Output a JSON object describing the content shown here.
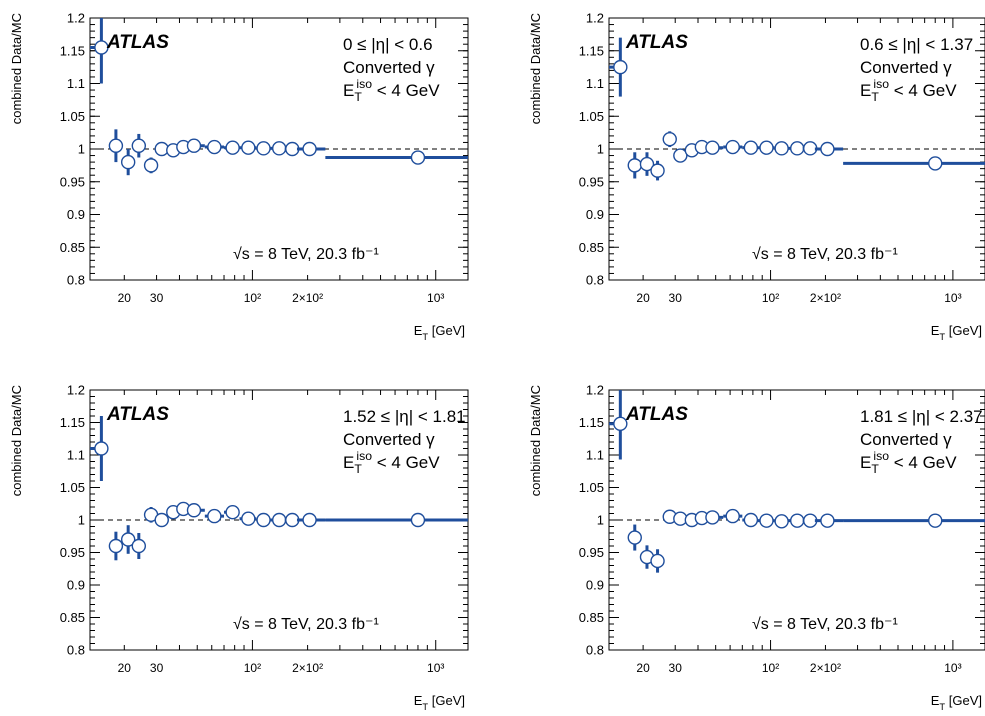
{
  "chart_data": [
    {
      "type": "scatter",
      "xscale": "log",
      "xlim": [
        13,
        1500
      ],
      "ylim": [
        0.8,
        1.2
      ],
      "xlabel": "E_T [GeV]",
      "ylabel": "combined Data/MC",
      "yticks": [
        "0.8",
        "0.85",
        "0.9",
        "0.95",
        "1",
        "1.05",
        "1.1",
        "1.15",
        "1.2"
      ],
      "xticks": [
        {
          "value": 20,
          "label": "20"
        },
        {
          "value": 30,
          "label": "30"
        },
        {
          "value": 100,
          "label": "10²"
        },
        {
          "value": 200,
          "label": "2×10²"
        },
        {
          "value": 1000,
          "label": "10³"
        }
      ],
      "reference_line": 1,
      "brand": "ATLAS",
      "annotations": [
        "0 ≤ |η| < 0.6",
        "Converted γ",
        "E_T^iso < 4 GeV"
      ],
      "lumi": "√s = 8 TeV, 20.3 fb⁻¹",
      "points": [
        {
          "x": 15,
          "xlo": 13,
          "xhi": 16,
          "y": 1.155,
          "yerr": 0.055
        },
        {
          "x": 18,
          "xlo": 17,
          "xhi": 19,
          "y": 1.005,
          "yerr": 0.025
        },
        {
          "x": 21,
          "xlo": 20,
          "xhi": 22,
          "y": 0.98,
          "yerr": 0.02
        },
        {
          "x": 24,
          "xlo": 23,
          "xhi": 25,
          "y": 1.005,
          "yerr": 0.018
        },
        {
          "x": 28,
          "xlo": 26,
          "xhi": 30,
          "y": 0.975,
          "yerr": 0.012
        },
        {
          "x": 32,
          "xlo": 30,
          "xhi": 35,
          "y": 1.0,
          "yerr": 0.008
        },
        {
          "x": 37,
          "xlo": 35,
          "xhi": 40,
          "y": 0.998,
          "yerr": 0.006
        },
        {
          "x": 42,
          "xlo": 40,
          "xhi": 45,
          "y": 1.003,
          "yerr": 0.005
        },
        {
          "x": 48,
          "xlo": 45,
          "xhi": 55,
          "y": 1.005,
          "yerr": 0.005
        },
        {
          "x": 62,
          "xlo": 55,
          "xhi": 70,
          "y": 1.003,
          "yerr": 0.004
        },
        {
          "x": 78,
          "xlo": 70,
          "xhi": 85,
          "y": 1.002,
          "yerr": 0.004
        },
        {
          "x": 95,
          "xlo": 85,
          "xhi": 105,
          "y": 1.002,
          "yerr": 0.004
        },
        {
          "x": 115,
          "xlo": 105,
          "xhi": 125,
          "y": 1.001,
          "yerr": 0.004
        },
        {
          "x": 140,
          "xlo": 125,
          "xhi": 150,
          "y": 1.001,
          "yerr": 0.004
        },
        {
          "x": 165,
          "xlo": 150,
          "xhi": 175,
          "y": 1.0,
          "yerr": 0.004
        },
        {
          "x": 205,
          "xlo": 175,
          "xhi": 250,
          "y": 1.0,
          "yerr": 0.004
        },
        {
          "x": 800,
          "xlo": 250,
          "xhi": 1500,
          "y": 0.987,
          "yerr": 0.005
        }
      ]
    },
    {
      "type": "scatter",
      "xscale": "log",
      "xlim": [
        13,
        1500
      ],
      "ylim": [
        0.8,
        1.2
      ],
      "xlabel": "E_T [GeV]",
      "ylabel": "combined Data/MC",
      "yticks": [
        "0.8",
        "0.85",
        "0.9",
        "0.95",
        "1",
        "1.05",
        "1.1",
        "1.15",
        "1.2"
      ],
      "xticks": [
        {
          "value": 20,
          "label": "20"
        },
        {
          "value": 30,
          "label": "30"
        },
        {
          "value": 100,
          "label": "10²"
        },
        {
          "value": 200,
          "label": "2×10²"
        },
        {
          "value": 1000,
          "label": "10³"
        }
      ],
      "reference_line": 1,
      "brand": "ATLAS",
      "annotations": [
        "0.6 ≤ |η| < 1.37",
        "Converted γ",
        "E_T^iso < 4 GeV"
      ],
      "lumi": "√s = 8 TeV, 20.3 fb⁻¹",
      "points": [
        {
          "x": 15,
          "xlo": 13,
          "xhi": 16,
          "y": 1.125,
          "yerr": 0.045
        },
        {
          "x": 18,
          "xlo": 17,
          "xhi": 19,
          "y": 0.975,
          "yerr": 0.02
        },
        {
          "x": 21,
          "xlo": 20,
          "xhi": 22,
          "y": 0.977,
          "yerr": 0.018
        },
        {
          "x": 24,
          "xlo": 23,
          "xhi": 25,
          "y": 0.967,
          "yerr": 0.015
        },
        {
          "x": 28,
          "xlo": 26,
          "xhi": 30,
          "y": 1.015,
          "yerr": 0.012
        },
        {
          "x": 32,
          "xlo": 30,
          "xhi": 35,
          "y": 0.99,
          "yerr": 0.008
        },
        {
          "x": 37,
          "xlo": 35,
          "xhi": 40,
          "y": 0.998,
          "yerr": 0.006
        },
        {
          "x": 42,
          "xlo": 40,
          "xhi": 45,
          "y": 1.003,
          "yerr": 0.005
        },
        {
          "x": 48,
          "xlo": 45,
          "xhi": 55,
          "y": 1.002,
          "yerr": 0.005
        },
        {
          "x": 62,
          "xlo": 55,
          "xhi": 70,
          "y": 1.003,
          "yerr": 0.004
        },
        {
          "x": 78,
          "xlo": 70,
          "xhi": 85,
          "y": 1.002,
          "yerr": 0.004
        },
        {
          "x": 95,
          "xlo": 85,
          "xhi": 105,
          "y": 1.002,
          "yerr": 0.004
        },
        {
          "x": 115,
          "xlo": 105,
          "xhi": 125,
          "y": 1.001,
          "yerr": 0.004
        },
        {
          "x": 140,
          "xlo": 125,
          "xhi": 150,
          "y": 1.001,
          "yerr": 0.004
        },
        {
          "x": 165,
          "xlo": 150,
          "xhi": 175,
          "y": 1.001,
          "yerr": 0.004
        },
        {
          "x": 205,
          "xlo": 175,
          "xhi": 250,
          "y": 1.0,
          "yerr": 0.004
        },
        {
          "x": 800,
          "xlo": 250,
          "xhi": 1500,
          "y": 0.978,
          "yerr": 0.005
        }
      ]
    },
    {
      "type": "scatter",
      "xscale": "log",
      "xlim": [
        13,
        1500
      ],
      "ylim": [
        0.8,
        1.2
      ],
      "xlabel": "E_T [GeV]",
      "ylabel": "combined Data/MC",
      "yticks": [
        "0.8",
        "0.85",
        "0.9",
        "0.95",
        "1",
        "1.05",
        "1.1",
        "1.15",
        "1.2"
      ],
      "xticks": [
        {
          "value": 20,
          "label": "20"
        },
        {
          "value": 30,
          "label": "30"
        },
        {
          "value": 100,
          "label": "10²"
        },
        {
          "value": 200,
          "label": "2×10²"
        },
        {
          "value": 1000,
          "label": "10³"
        }
      ],
      "reference_line": 1,
      "brand": "ATLAS",
      "annotations": [
        "1.52 ≤ |η| < 1.81",
        "Converted γ",
        "E_T^iso < 4 GeV"
      ],
      "lumi": "√s = 8 TeV, 20.3 fb⁻¹",
      "points": [
        {
          "x": 15,
          "xlo": 13,
          "xhi": 16,
          "y": 1.11,
          "yerr": 0.05
        },
        {
          "x": 18,
          "xlo": 17,
          "xhi": 19,
          "y": 0.96,
          "yerr": 0.022
        },
        {
          "x": 21,
          "xlo": 20,
          "xhi": 22,
          "y": 0.97,
          "yerr": 0.022
        },
        {
          "x": 24,
          "xlo": 23,
          "xhi": 25,
          "y": 0.96,
          "yerr": 0.02
        },
        {
          "x": 28,
          "xlo": 26,
          "xhi": 30,
          "y": 1.008,
          "yerr": 0.012
        },
        {
          "x": 32,
          "xlo": 30,
          "xhi": 35,
          "y": 1.0,
          "yerr": 0.008
        },
        {
          "x": 37,
          "xlo": 35,
          "xhi": 40,
          "y": 1.012,
          "yerr": 0.007
        },
        {
          "x": 42,
          "xlo": 40,
          "xhi": 45,
          "y": 1.017,
          "yerr": 0.006
        },
        {
          "x": 48,
          "xlo": 45,
          "xhi": 55,
          "y": 1.015,
          "yerr": 0.006
        },
        {
          "x": 62,
          "xlo": 55,
          "xhi": 70,
          "y": 1.006,
          "yerr": 0.005
        },
        {
          "x": 78,
          "xlo": 70,
          "xhi": 85,
          "y": 1.012,
          "yerr": 0.005
        },
        {
          "x": 95,
          "xlo": 85,
          "xhi": 105,
          "y": 1.002,
          "yerr": 0.004
        },
        {
          "x": 115,
          "xlo": 105,
          "xhi": 125,
          "y": 1.0,
          "yerr": 0.004
        },
        {
          "x": 140,
          "xlo": 125,
          "xhi": 150,
          "y": 1.0,
          "yerr": 0.004
        },
        {
          "x": 165,
          "xlo": 150,
          "xhi": 175,
          "y": 1.0,
          "yerr": 0.004
        },
        {
          "x": 205,
          "xlo": 175,
          "xhi": 250,
          "y": 1.0,
          "yerr": 0.004
        },
        {
          "x": 800,
          "xlo": 250,
          "xhi": 1500,
          "y": 1.0,
          "yerr": 0.004
        }
      ]
    },
    {
      "type": "scatter",
      "xscale": "log",
      "xlim": [
        13,
        1500
      ],
      "ylim": [
        0.8,
        1.2
      ],
      "xlabel": "E_T [GeV]",
      "ylabel": "combined Data/MC",
      "yticks": [
        "0.8",
        "0.85",
        "0.9",
        "0.95",
        "1",
        "1.05",
        "1.1",
        "1.15",
        "1.2"
      ],
      "xticks": [
        {
          "value": 20,
          "label": "20"
        },
        {
          "value": 30,
          "label": "30"
        },
        {
          "value": 100,
          "label": "10²"
        },
        {
          "value": 200,
          "label": "2×10²"
        },
        {
          "value": 1000,
          "label": "10³"
        }
      ],
      "reference_line": 1,
      "brand": "ATLAS",
      "annotations": [
        "1.81 ≤ |η| < 2.37",
        "Converted γ",
        "E_T^iso < 4 GeV"
      ],
      "lumi": "√s = 8 TeV, 20.3 fb⁻¹",
      "points": [
        {
          "x": 15,
          "xlo": 13,
          "xhi": 16,
          "y": 1.148,
          "yerr": 0.055
        },
        {
          "x": 18,
          "xlo": 17,
          "xhi": 19,
          "y": 0.973,
          "yerr": 0.02
        },
        {
          "x": 21,
          "xlo": 20,
          "xhi": 22,
          "y": 0.943,
          "yerr": 0.018
        },
        {
          "x": 24,
          "xlo": 23,
          "xhi": 25,
          "y": 0.937,
          "yerr": 0.018
        },
        {
          "x": 28,
          "xlo": 26,
          "xhi": 30,
          "y": 1.005,
          "yerr": 0.01
        },
        {
          "x": 32,
          "xlo": 30,
          "xhi": 35,
          "y": 1.002,
          "yerr": 0.008
        },
        {
          "x": 37,
          "xlo": 35,
          "xhi": 40,
          "y": 1.0,
          "yerr": 0.006
        },
        {
          "x": 42,
          "xlo": 40,
          "xhi": 45,
          "y": 1.003,
          "yerr": 0.005
        },
        {
          "x": 48,
          "xlo": 45,
          "xhi": 55,
          "y": 1.004,
          "yerr": 0.005
        },
        {
          "x": 62,
          "xlo": 55,
          "xhi": 70,
          "y": 1.006,
          "yerr": 0.005
        },
        {
          "x": 78,
          "xlo": 70,
          "xhi": 85,
          "y": 1.0,
          "yerr": 0.004
        },
        {
          "x": 95,
          "xlo": 85,
          "xhi": 105,
          "y": 0.999,
          "yerr": 0.004
        },
        {
          "x": 115,
          "xlo": 105,
          "xhi": 125,
          "y": 0.998,
          "yerr": 0.004
        },
        {
          "x": 140,
          "xlo": 125,
          "xhi": 150,
          "y": 0.999,
          "yerr": 0.004
        },
        {
          "x": 165,
          "xlo": 150,
          "xhi": 175,
          "y": 0.999,
          "yerr": 0.004
        },
        {
          "x": 205,
          "xlo": 175,
          "xhi": 250,
          "y": 0.999,
          "yerr": 0.004
        },
        {
          "x": 800,
          "xlo": 250,
          "xhi": 1500,
          "y": 0.999,
          "yerr": 0.004
        }
      ]
    }
  ],
  "style": {
    "marker_color": "#1f4e9c",
    "axis_color": "#000000",
    "reference_line_color": "#000000",
    "background": "#ffffff"
  }
}
